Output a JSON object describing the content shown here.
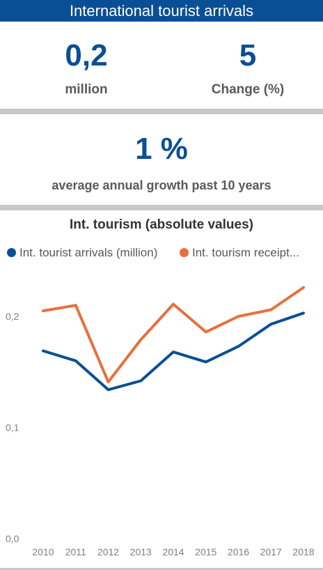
{
  "header": {
    "title": "International tourist arrivals"
  },
  "kpis": {
    "arrivals": {
      "value": "0,2",
      "label": "million"
    },
    "change": {
      "value": "5",
      "label": "Change (%)"
    }
  },
  "growth": {
    "value": "1 %",
    "label": "average annual growth past 10 years"
  },
  "colors": {
    "header": "#0a4f96",
    "arrivals": "#0a4f96",
    "receipts": "#e8703a",
    "divider": "#c8c8c8"
  },
  "chart_data": {
    "type": "line",
    "title": "Int. tourism (absolute values)",
    "x": [
      "2010",
      "2011",
      "2012",
      "2013",
      "2014",
      "2015",
      "2016",
      "2017",
      "2018"
    ],
    "series": [
      {
        "name": "Int. tourist arrivals (million)",
        "color": "#0a4f96",
        "values": [
          0.169,
          0.16,
          0.134,
          0.142,
          0.168,
          0.159,
          0.173,
          0.193,
          0.203
        ]
      },
      {
        "name": "Int. tourism receipt...",
        "color": "#e8703a",
        "values": [
          0.205,
          0.21,
          0.141,
          0.179,
          0.211,
          0.186,
          0.2,
          0.206,
          0.226
        ]
      }
    ],
    "yticks": [
      {
        "value": 0.0,
        "label": "0,0"
      },
      {
        "value": 0.1,
        "label": "0,1"
      },
      {
        "value": 0.2,
        "label": "0,2"
      }
    ],
    "ylim": [
      0,
      0.232
    ],
    "grid": false,
    "legend": "top-left"
  }
}
